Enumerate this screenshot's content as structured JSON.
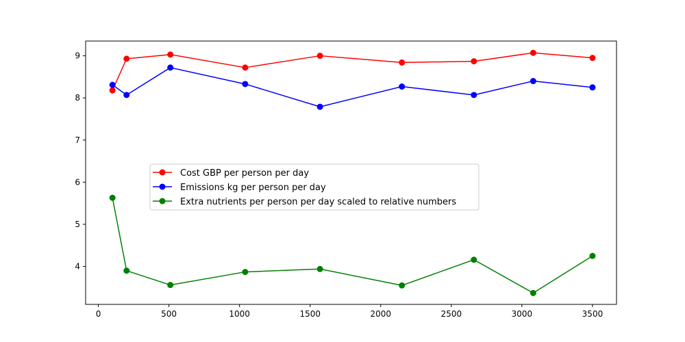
{
  "chart_data": {
    "type": "line",
    "title": "",
    "xlabel": "",
    "ylabel": "",
    "xlim": [
      -90,
      3670
    ],
    "ylim": [
      3.1,
      9.35
    ],
    "xticks": [
      0,
      500,
      1000,
      1500,
      2000,
      2500,
      3000,
      3500
    ],
    "yticks": [
      4,
      5,
      6,
      7,
      8,
      9
    ],
    "grid": false,
    "legend_position": "center-left",
    "series": [
      {
        "name": "Cost GBP per person per day",
        "color": "#ff0000",
        "x": [
          100,
          200,
          510,
          1040,
          1570,
          2150,
          2660,
          3080,
          3500
        ],
        "y": [
          8.18,
          8.93,
          9.03,
          8.72,
          9.0,
          8.84,
          8.87,
          9.07,
          8.95
        ]
      },
      {
        "name": "Emissions kg per person per day",
        "color": "#0000ff",
        "x": [
          100,
          200,
          510,
          1040,
          1570,
          2150,
          2660,
          3080,
          3500
        ],
        "y": [
          8.31,
          8.07,
          8.72,
          8.33,
          7.79,
          8.27,
          8.07,
          8.4,
          8.25
        ]
      },
      {
        "name": "Extra nutrients per person per day scaled to relative numbers",
        "color": "#008000",
        "x": [
          100,
          200,
          510,
          1040,
          1570,
          2150,
          2660,
          3080,
          3500
        ],
        "y": [
          5.63,
          3.9,
          3.56,
          3.87,
          3.94,
          3.55,
          4.16,
          3.37,
          4.25
        ]
      }
    ]
  }
}
